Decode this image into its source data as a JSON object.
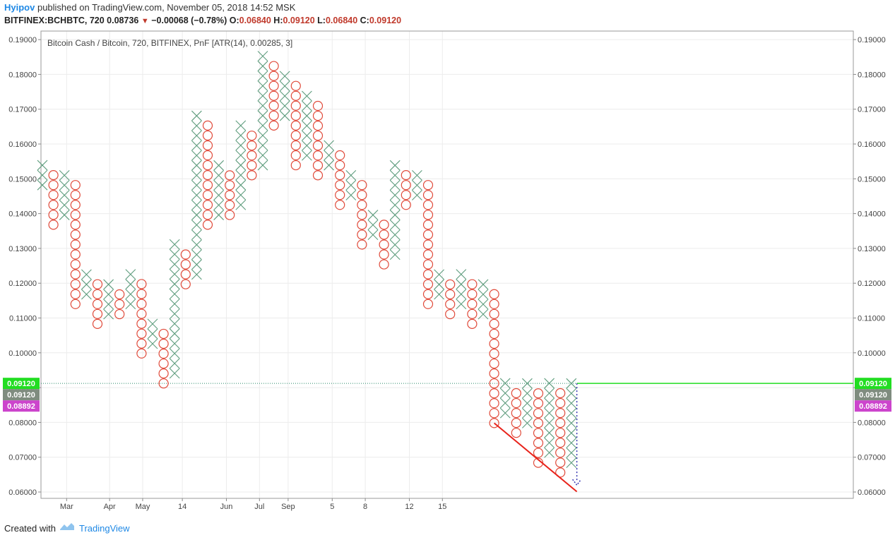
{
  "header": {
    "author": "Hyipov",
    "published": "published on TradingView.com, November 05, 2018 14:52 MSK",
    "symbol": "BITFINEX:BCHBTC, 720",
    "last_price": "0.08736",
    "down_arrow": "▼",
    "change": "−0.00068 (−0.78%)",
    "o_label": "O:",
    "o_value": "0.06840",
    "h_label": "H:",
    "h_value": "0.09120",
    "l_label": "L:",
    "l_value": "0.06840",
    "c_label": "C:",
    "c_value": "0.09120"
  },
  "footer": {
    "created_with": "Created with",
    "brand": "TradingView"
  },
  "colors": {
    "x_mark": "#5e9c7d",
    "o_mark": "#e04a3a",
    "trend_line": "#e8231b",
    "current_line": "#22dd22",
    "price_tag_green": "#22dd22",
    "price_tag_gray": "#7f8c7f",
    "price_tag_magenta": "#cc44cc",
    "grid": "#ececec",
    "projection_arrow": "#3434b0"
  },
  "chart_data": {
    "type": "point-and-figure",
    "title": "Bitcoin Cash / Bitcoin, 720, BITFINEX, PnF [ATR(14), 0.00285, 3]",
    "box_size": 0.00285,
    "reversal": 3,
    "y_ticks": [
      "0.06000",
      "0.07000",
      "0.08000",
      "0.09000",
      "0.10000",
      "0.11000",
      "0.12000",
      "0.13000",
      "0.14000",
      "0.15000",
      "0.16000",
      "0.17000",
      "0.18000",
      "0.19000"
    ],
    "ylim": [
      0.0595,
      0.1915
    ],
    "x_ticks": [
      {
        "label": "Mar",
        "col": 2.2
      },
      {
        "label": "Apr",
        "col": 6.1
      },
      {
        "label": "May",
        "col": 9.1
      },
      {
        "label": "14",
        "col": 12.7
      },
      {
        "label": "Jun",
        "col": 16.7
      },
      {
        "label": "Jul",
        "col": 19.7
      },
      {
        "label": "Sep",
        "col": 22.3
      },
      {
        "label": "5",
        "col": 26.3
      },
      {
        "label": "8",
        "col": 29.3
      },
      {
        "label": "12",
        "col": 33.3
      },
      {
        "label": "15",
        "col": 36.3
      }
    ],
    "columns": [
      {
        "type": "X",
        "low": 0.1482,
        "high": 0.1539
      },
      {
        "type": "O",
        "low": 0.1368,
        "high": 0.151
      },
      {
        "type": "X",
        "low": 0.1396,
        "high": 0.151
      },
      {
        "type": "O",
        "low": 0.114,
        "high": 0.1482
      },
      {
        "type": "X",
        "low": 0.1168,
        "high": 0.1225
      },
      {
        "type": "O",
        "low": 0.1083,
        "high": 0.1197
      },
      {
        "type": "X",
        "low": 0.1111,
        "high": 0.1197
      },
      {
        "type": "O",
        "low": 0.1111,
        "high": 0.1168
      },
      {
        "type": "X",
        "low": 0.114,
        "high": 0.1225
      },
      {
        "type": "O",
        "low": 0.0998,
        "high": 0.1197
      },
      {
        "type": "X",
        "low": 0.1026,
        "high": 0.1083
      },
      {
        "type": "O",
        "low": 0.0912,
        "high": 0.1054
      },
      {
        "type": "X",
        "low": 0.0941,
        "high": 0.1311
      },
      {
        "type": "O",
        "low": 0.1197,
        "high": 0.1282
      },
      {
        "type": "X",
        "low": 0.1225,
        "high": 0.1681
      },
      {
        "type": "O",
        "low": 0.1368,
        "high": 0.1653
      },
      {
        "type": "X",
        "low": 0.1396,
        "high": 0.1539
      },
      {
        "type": "O",
        "low": 0.1396,
        "high": 0.151
      },
      {
        "type": "X",
        "low": 0.1425,
        "high": 0.1653
      },
      {
        "type": "O",
        "low": 0.151,
        "high": 0.1624
      },
      {
        "type": "X",
        "low": 0.1539,
        "high": 0.1852
      },
      {
        "type": "O",
        "low": 0.1653,
        "high": 0.1824
      },
      {
        "type": "X",
        "low": 0.1681,
        "high": 0.1795
      },
      {
        "type": "O",
        "low": 0.1539,
        "high": 0.1767
      },
      {
        "type": "X",
        "low": 0.1567,
        "high": 0.1738
      },
      {
        "type": "O",
        "low": 0.151,
        "high": 0.171
      },
      {
        "type": "X",
        "low": 0.1539,
        "high": 0.1596
      },
      {
        "type": "O",
        "low": 0.1425,
        "high": 0.1567
      },
      {
        "type": "X",
        "low": 0.1453,
        "high": 0.151
      },
      {
        "type": "O",
        "low": 0.1311,
        "high": 0.1482
      },
      {
        "type": "X",
        "low": 0.1339,
        "high": 0.1396
      },
      {
        "type": "O",
        "low": 0.1254,
        "high": 0.1368
      },
      {
        "type": "X",
        "low": 0.1282,
        "high": 0.1539
      },
      {
        "type": "O",
        "low": 0.1425,
        "high": 0.151
      },
      {
        "type": "X",
        "low": 0.1453,
        "high": 0.151
      },
      {
        "type": "O",
        "low": 0.114,
        "high": 0.1482
      },
      {
        "type": "X",
        "low": 0.1168,
        "high": 0.1225
      },
      {
        "type": "O",
        "low": 0.1111,
        "high": 0.1197
      },
      {
        "type": "X",
        "low": 0.114,
        "high": 0.1225
      },
      {
        "type": "O",
        "low": 0.1083,
        "high": 0.1197
      },
      {
        "type": "X",
        "low": 0.1111,
        "high": 0.1197
      },
      {
        "type": "O",
        "low": 0.0798,
        "high": 0.1168
      },
      {
        "type": "X",
        "low": 0.0827,
        "high": 0.0912
      },
      {
        "type": "O",
        "low": 0.077,
        "high": 0.0884
      },
      {
        "type": "X",
        "low": 0.0798,
        "high": 0.0912
      },
      {
        "type": "O",
        "low": 0.0684,
        "high": 0.0884
      },
      {
        "type": "X",
        "low": 0.0713,
        "high": 0.0912
      },
      {
        "type": "O",
        "low": 0.0656,
        "high": 0.0884
      },
      {
        "type": "X",
        "low": 0.0684,
        "high": 0.0912
      }
    ],
    "price_tags": [
      {
        "value": 0.0912,
        "label": "0.09120",
        "color_key": "price_tag_green"
      },
      {
        "value": 0.0912,
        "label": "0.09120",
        "color_key": "price_tag_gray"
      },
      {
        "value": 0.08892,
        "label": "0.08892",
        "color_key": "price_tag_magenta"
      }
    ],
    "trend_line": {
      "from": {
        "col": 41,
        "value": 0.0798
      },
      "to": {
        "col": 48.5,
        "value": 0.0601
      }
    },
    "current_price_line": {
      "value": 0.0912,
      "from_col": 48.5
    },
    "projection": {
      "col": 48.5,
      "from": 0.0912,
      "to": 0.062
    }
  }
}
